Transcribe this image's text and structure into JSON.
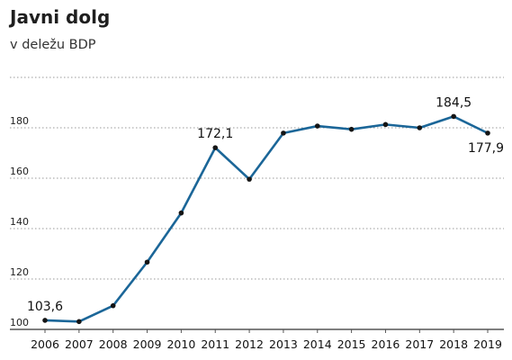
{
  "chart_data": {
    "type": "line",
    "title": "Javni dolg",
    "subtitle": "v deležu BDP",
    "x": [
      "2006",
      "2007",
      "2008",
      "2009",
      "2010",
      "2011",
      "2012",
      "2013",
      "2014",
      "2015",
      "2016",
      "2017",
      "2018",
      "2019"
    ],
    "series": [
      {
        "values": [
          103.6,
          103.1,
          109.4,
          126.7,
          146.2,
          172.1,
          159.6,
          177.9,
          180.7,
          179.4,
          181.3,
          180.0,
          184.5,
          177.9
        ]
      }
    ],
    "y_ticks": [
      "100",
      "120",
      "140",
      "160",
      "180"
    ],
    "ylim": [
      100,
      200
    ],
    "data_labels": [
      {
        "x": "2006",
        "text": "103,6"
      },
      {
        "x": "2011",
        "text": "172,1"
      },
      {
        "x": "2018",
        "text": "184,5"
      },
      {
        "x": "2019",
        "text": "177,9"
      }
    ],
    "grid": true,
    "colors": {
      "line": "#1b6698",
      "marker": "#151515"
    }
  }
}
